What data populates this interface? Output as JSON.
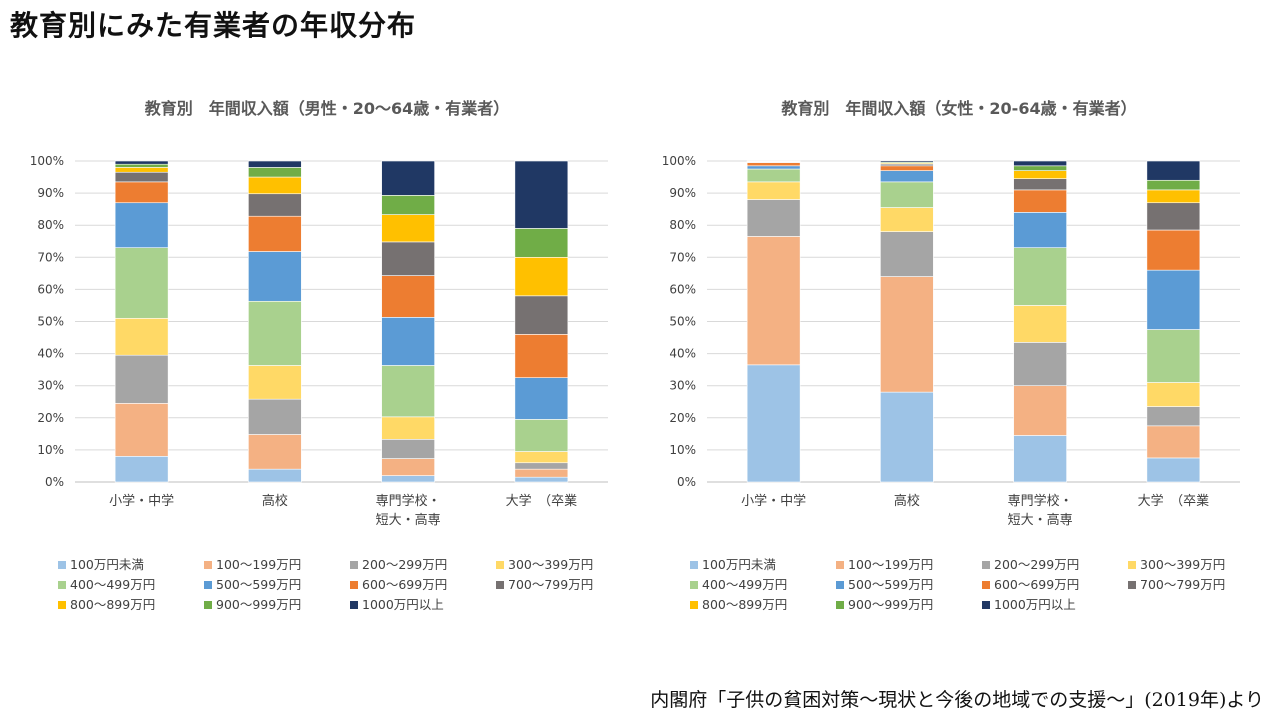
{
  "page": {
    "title": "教育別にみた有業者の年収分布",
    "source": "内閣府「子供の貧困対策～現状と今後の地域での支援～」(2019年)より"
  },
  "chart_data": [
    {
      "type": "bar",
      "stacked": true,
      "title": "教育別　年間収入額（男性・20～64歳・有業者）",
      "categories": [
        [
          "小学・中学"
        ],
        [
          "高校"
        ],
        [
          "専門学校・",
          "短大・高専"
        ],
        [
          "大学　（卒業"
        ]
      ],
      "ylim": [
        0,
        100
      ],
      "yticks": [
        "0%",
        "10%",
        "20%",
        "30%",
        "40%",
        "50%",
        "60%",
        "70%",
        "80%",
        "90%",
        "100%"
      ],
      "grid": true,
      "legend_position": "bottom",
      "series": [
        {
          "name": "100万円未満",
          "color": "#9DC3E6",
          "values": [
            8.0,
            4.0,
            2.0,
            1.5
          ]
        },
        {
          "name": "100～199万円",
          "color": "#F4B183",
          "values": [
            16.5,
            10.8,
            5.3,
            2.5
          ]
        },
        {
          "name": "200～299万円",
          "color": "#A5A5A5",
          "values": [
            15.0,
            11.0,
            6.0,
            2.0
          ]
        },
        {
          "name": "300～399万円",
          "color": "#FFD966",
          "values": [
            11.5,
            10.5,
            7.0,
            3.5
          ]
        },
        {
          "name": "400～499万円",
          "color": "#A9D18E",
          "values": [
            22.0,
            20.0,
            16.0,
            10.0
          ]
        },
        {
          "name": "500～599万円",
          "color": "#5B9BD5",
          "values": [
            14.0,
            15.5,
            15.0,
            13.0
          ]
        },
        {
          "name": "600～699万円",
          "color": "#ED7D31",
          "values": [
            6.5,
            11.0,
            13.0,
            13.5
          ]
        },
        {
          "name": "700～799万円",
          "color": "#767171",
          "values": [
            3.0,
            7.0,
            10.5,
            12.0
          ]
        },
        {
          "name": "800～899万円",
          "color": "#FFC000",
          "values": [
            1.5,
            5.2,
            8.5,
            12.0
          ]
        },
        {
          "name": "900～999万円",
          "color": "#70AD47",
          "values": [
            1.0,
            3.0,
            6.0,
            9.0
          ]
        },
        {
          "name": "1000万円以上",
          "color": "#203864",
          "values": [
            1.0,
            2.0,
            10.7,
            21.0
          ]
        }
      ]
    },
    {
      "type": "bar",
      "stacked": true,
      "title": "教育別　年間収入額（女性・20-64歳・有業者）",
      "categories": [
        [
          "小学・中学"
        ],
        [
          "高校"
        ],
        [
          "専門学校・",
          "短大・高専"
        ],
        [
          "大学　（卒業"
        ]
      ],
      "ylim": [
        0,
        100
      ],
      "yticks": [
        "0%",
        "10%",
        "20%",
        "30%",
        "40%",
        "50%",
        "60%",
        "70%",
        "80%",
        "90%",
        "100%"
      ],
      "grid": true,
      "legend_position": "bottom",
      "series": [
        {
          "name": "100万円未満",
          "color": "#9DC3E6",
          "values": [
            36.5,
            28.0,
            14.5,
            7.5
          ]
        },
        {
          "name": "100～199万円",
          "color": "#F4B183",
          "values": [
            40.0,
            36.0,
            15.5,
            10.0
          ]
        },
        {
          "name": "200～299万円",
          "color": "#A5A5A5",
          "values": [
            11.5,
            14.0,
            13.5,
            6.0
          ]
        },
        {
          "name": "300～399万円",
          "color": "#FFD966",
          "values": [
            5.5,
            7.5,
            11.5,
            7.5
          ]
        },
        {
          "name": "400～499万円",
          "color": "#A9D18E",
          "values": [
            4.0,
            8.0,
            18.0,
            16.5
          ]
        },
        {
          "name": "500～599万円",
          "color": "#5B9BD5",
          "values": [
            1.0,
            3.5,
            11.0,
            18.5
          ]
        },
        {
          "name": "600～699万円",
          "color": "#ED7D31",
          "values": [
            1.0,
            1.5,
            7.0,
            12.5
          ]
        },
        {
          "name": "700～799万円",
          "color": "#767171",
          "values": [
            0.2,
            0.5,
            3.5,
            8.5
          ]
        },
        {
          "name": "800～899万円",
          "color": "#FFC000",
          "values": [
            0.1,
            0.3,
            2.5,
            4.0
          ]
        },
        {
          "name": "900～999万円",
          "color": "#70AD47",
          "values": [
            0.1,
            0.3,
            1.5,
            3.0
          ]
        },
        {
          "name": "1000万円以上",
          "color": "#203864",
          "values": [
            0.1,
            0.4,
            1.5,
            6.0
          ]
        }
      ]
    }
  ]
}
